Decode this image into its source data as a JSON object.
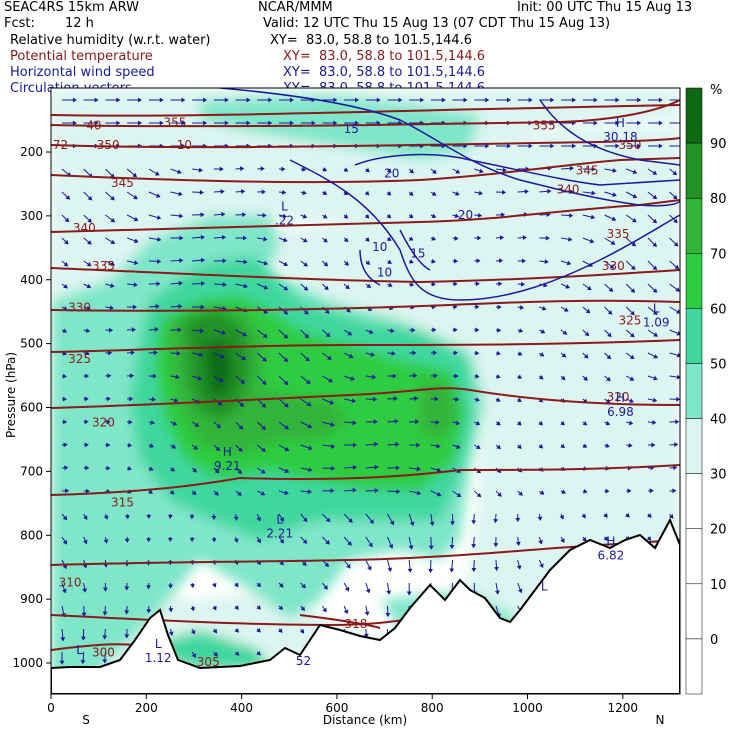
{
  "header": {
    "model": "SEAC4RS 15km ARW",
    "center": "NCAR/MMM",
    "init": "Init: 00 UTC Thu 15 Aug 13",
    "fcst_label": "Fcst:",
    "fcst_value": "12 h",
    "valid": "Valid: 12 UTC Thu 15 Aug 13 (07 CDT Thu 15 Aug 13)"
  },
  "fields": [
    {
      "name": "Relative humidity (w.r.t. water)",
      "xy": "XY=  83.0, 58.8 to 101.5,144.6",
      "color": "#000000"
    },
    {
      "name": "Potential temperature",
      "xy": "XY=  83.0, 58.8 to 101.5,144.6",
      "color": "#8b1a1a"
    },
    {
      "name": "Horizontal wind speed",
      "xy": "XY=  83.0, 58.8 to 101.5,144.6",
      "color": "#1a1a9e"
    },
    {
      "name": "Circulation vectors",
      "xy": "XY=  83.0, 58.8 to 101.5,144.6",
      "color": "#1a1a9e"
    }
  ],
  "axes": {
    "ylabel": "Pressure (hPa)",
    "xlabel": "Distance (km)",
    "left_end": "S",
    "right_end": "N",
    "y_ticks": [
      200,
      300,
      400,
      500,
      600,
      700,
      800,
      900,
      1000
    ],
    "x_ticks": [
      0,
      200,
      400,
      600,
      800,
      1000,
      1200
    ],
    "y_range": [
      100,
      1050
    ],
    "x_range": [
      0,
      1320
    ]
  },
  "colorbar": {
    "unit": "%",
    "levels": [
      0,
      10,
      20,
      30,
      40,
      50,
      60,
      70,
      80,
      90
    ],
    "colors": [
      "#ffffff",
      "#ffffff",
      "#ffffff",
      "#dcf5f0",
      "#7fe6c8",
      "#3fd79e",
      "#2ecc40",
      "#32b43a",
      "#229126",
      "#0e6a12"
    ]
  },
  "chart_data": {
    "type": "heatmap",
    "title": "",
    "xlabel": "Distance (km)",
    "ylabel": "Pressure (hPa)",
    "theta_labels": [
      {
        "text": "355",
        "x": 260,
        "p": 160
      },
      {
        "text": "350",
        "x": 120,
        "p": 195
      },
      {
        "text": "345",
        "x": 150,
        "p": 255
      },
      {
        "text": "340",
        "x": 70,
        "p": 325
      },
      {
        "text": "335",
        "x": 110,
        "p": 385
      },
      {
        "text": "330",
        "x": 60,
        "p": 450
      },
      {
        "text": "325",
        "x": 60,
        "p": 530
      },
      {
        "text": "320",
        "x": 110,
        "p": 630
      },
      {
        "text": "315",
        "x": 150,
        "p": 755
      },
      {
        "text": "310",
        "x": 40,
        "p": 880
      },
      {
        "text": "305",
        "x": 330,
        "p": 1005
      },
      {
        "text": "300",
        "x": 110,
        "p": 990
      },
      {
        "text": "318",
        "x": 640,
        "p": 945
      },
      {
        "text": "355",
        "x": 1035,
        "p": 165
      },
      {
        "text": "350",
        "x": 1215,
        "p": 195
      },
      {
        "text": "345",
        "x": 1125,
        "p": 235
      },
      {
        "text": "340",
        "x": 1085,
        "p": 265
      },
      {
        "text": "335",
        "x": 1190,
        "p": 335
      },
      {
        "text": "330",
        "x": 1180,
        "p": 385
      },
      {
        "text": "325",
        "x": 1215,
        "p": 470
      },
      {
        "text": "320",
        "x": 1190,
        "p": 590
      },
      {
        "text": "10",
        "x": 280,
        "p": 195
      },
      {
        "text": "40",
        "x": 90,
        "p": 165
      },
      {
        "text": "72",
        "x": 20,
        "p": 195
      }
    ],
    "wind_labels": [
      {
        "text": "15",
        "x": 630,
        "p": 170
      },
      {
        "text": "20",
        "x": 715,
        "p": 240
      },
      {
        "text": "20",
        "x": 870,
        "p": 305
      },
      {
        "text": "10",
        "x": 690,
        "p": 355
      },
      {
        "text": "15",
        "x": 770,
        "p": 365
      },
      {
        "text": "10",
        "x": 700,
        "p": 395
      }
    ],
    "extrema": [
      {
        "text": "L",
        "value": ".22",
        "x": 490,
        "p": 310
      },
      {
        "text": "L",
        "value": "1.09",
        "x": 1270,
        "p": 470
      },
      {
        "text": "H",
        "value": "6.98",
        "x": 1195,
        "p": 610
      },
      {
        "text": "H",
        "value": "9.21",
        "x": 370,
        "p": 695
      },
      {
        "text": "L",
        "value": "2.21",
        "x": 480,
        "p": 800
      },
      {
        "text": "H",
        "value": "6.82",
        "x": 1175,
        "p": 835
      },
      {
        "text": "L",
        "value": "1.12",
        "x": 225,
        "p": 995
      },
      {
        "text": "L",
        "value": "",
        "x": 60,
        "p": 1005
      },
      {
        "text": "L",
        "value": "",
        "x": 1035,
        "p": 905
      },
      {
        "text": "H",
        "value": "30.18",
        "x": 1195,
        "p": 180
      },
      {
        "text": "",
        "value": "52",
        "x": 530,
        "p": 1000
      }
    ]
  }
}
